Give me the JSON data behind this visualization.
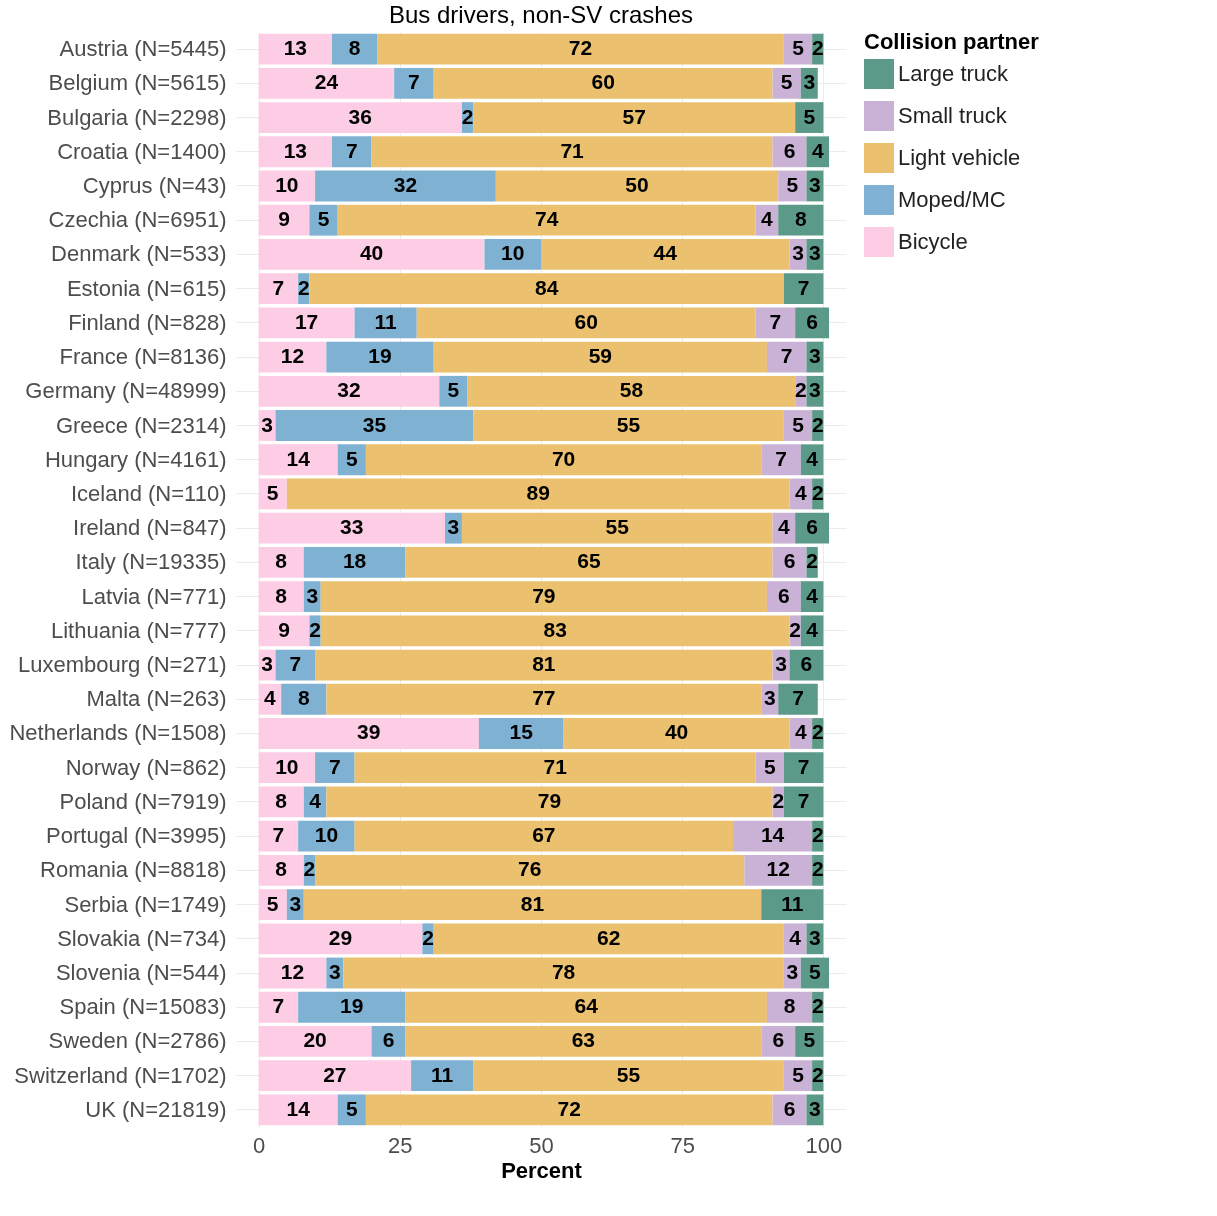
{
  "chart_data": {
    "type": "bar",
    "orientation": "horizontal",
    "stacked": true,
    "data_labels": true,
    "grid": true,
    "legend": "right",
    "title": "Bus drivers, non-SV crashes",
    "xlabel": "Percent",
    "legend_title": "Collision partner",
    "xlim": [
      -4,
      104
    ],
    "xticks": [
      0,
      25,
      50,
      75,
      100
    ],
    "categories": [
      "Austria (N=5445)",
      "Belgium (N=5615)",
      "Bulgaria (N=2298)",
      "Croatia (N=1400)",
      "Cyprus (N=43)",
      "Czechia (N=6951)",
      "Denmark (N=533)",
      "Estonia (N=615)",
      "Finland (N=828)",
      "France (N=8136)",
      "Germany (N=48999)",
      "Greece (N=2314)",
      "Hungary (N=4161)",
      "Iceland (N=110)",
      "Ireland (N=847)",
      "Italy (N=19335)",
      "Latvia (N=771)",
      "Lithuania (N=777)",
      "Luxembourg (N=271)",
      "Malta (N=263)",
      "Netherlands (N=1508)",
      "Norway (N=862)",
      "Poland (N=7919)",
      "Portugal (N=3995)",
      "Romania (N=8818)",
      "Serbia (N=1749)",
      "Slovakia (N=734)",
      "Slovenia (N=544)",
      "Spain (N=15083)",
      "Sweden (N=2786)",
      "Switzerland (N=1702)",
      "UK (N=21819)"
    ],
    "series": [
      {
        "name": "Bicycle",
        "color": "#fccde5",
        "values": [
          13,
          24,
          36,
          13,
          10,
          9,
          40,
          7,
          17,
          12,
          32,
          3,
          14,
          5,
          33,
          8,
          8,
          9,
          3,
          4,
          39,
          10,
          8,
          7,
          8,
          5,
          29,
          12,
          7,
          20,
          27,
          14
        ]
      },
      {
        "name": "Moped/MC",
        "color": "#7fb1d3",
        "values": [
          8,
          7,
          2,
          7,
          32,
          5,
          10,
          2,
          11,
          19,
          5,
          35,
          5,
          null,
          3,
          18,
          3,
          2,
          7,
          8,
          15,
          7,
          4,
          10,
          2,
          3,
          2,
          3,
          19,
          6,
          11,
          5
        ]
      },
      {
        "name": "Light vehicle",
        "color": "#ebc16f",
        "values": [
          72,
          60,
          57,
          71,
          50,
          74,
          44,
          84,
          60,
          59,
          58,
          55,
          70,
          89,
          55,
          65,
          79,
          83,
          81,
          77,
          40,
          71,
          79,
          67,
          76,
          81,
          62,
          78,
          64,
          63,
          55,
          72
        ]
      },
      {
        "name": "Small truck",
        "color": "#c9b2d6",
        "values": [
          5,
          5,
          null,
          6,
          5,
          4,
          3,
          null,
          7,
          7,
          2,
          5,
          7,
          4,
          4,
          6,
          6,
          2,
          3,
          3,
          4,
          5,
          2,
          14,
          12,
          null,
          4,
          3,
          8,
          6,
          5,
          6
        ]
      },
      {
        "name": "Large truck",
        "color": "#5b9a88",
        "values": [
          2,
          3,
          5,
          4,
          3,
          8,
          3,
          7,
          6,
          3,
          3,
          2,
          4,
          2,
          6,
          2,
          4,
          4,
          6,
          7,
          2,
          7,
          7,
          2,
          2,
          11,
          3,
          5,
          2,
          5,
          2,
          3
        ]
      }
    ]
  }
}
